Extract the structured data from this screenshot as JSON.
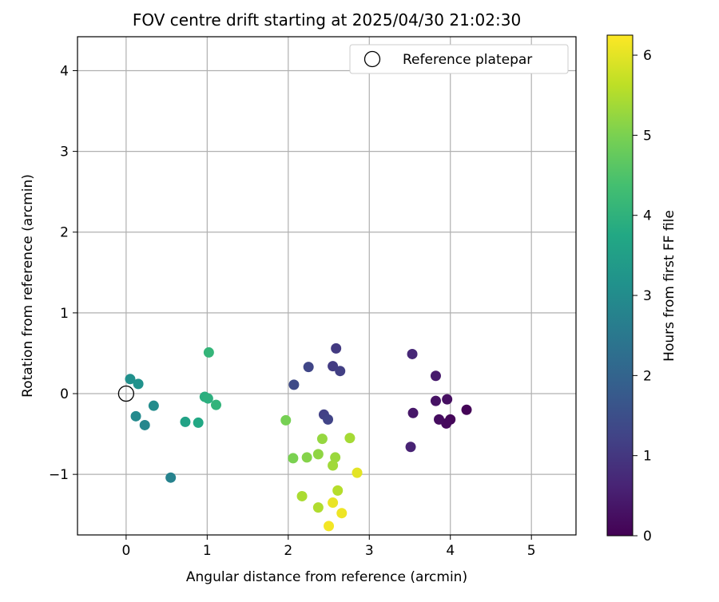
{
  "chart_data": {
    "type": "scatter",
    "title": "FOV centre drift starting at 2025/04/30 21:02:30",
    "xlabel": "Angular distance from reference (arcmin)",
    "ylabel": "Rotation from reference (arcmin)",
    "xlim": [
      -0.6,
      5.55
    ],
    "ylim": [
      -1.75,
      4.42
    ],
    "xticks": [
      0,
      1,
      2,
      3,
      4,
      5
    ],
    "yticks": [
      -1,
      0,
      1,
      2,
      3,
      4
    ],
    "grid": true,
    "legend": {
      "position": "top-right",
      "entries": [
        "Reference platepar"
      ]
    },
    "reference_point": {
      "x": 0.0,
      "y": 0.0,
      "name": "Reference platepar"
    },
    "colorbar": {
      "label": "Hours from first FF file",
      "range": [
        0,
        6.25
      ],
      "ticks": [
        0,
        1,
        2,
        3,
        4,
        5,
        6
      ],
      "colormap": "viridis"
    },
    "points": [
      {
        "x": 4.2,
        "y": -0.2,
        "c": 0.05
      },
      {
        "x": 4.0,
        "y": -0.32,
        "c": 0.1
      },
      {
        "x": 3.95,
        "y": -0.37,
        "c": 0.15
      },
      {
        "x": 3.86,
        "y": -0.32,
        "c": 0.2
      },
      {
        "x": 3.96,
        "y": -0.07,
        "c": 0.25
      },
      {
        "x": 3.82,
        "y": -0.09,
        "c": 0.3
      },
      {
        "x": 3.54,
        "y": -0.24,
        "c": 0.4
      },
      {
        "x": 3.82,
        "y": 0.22,
        "c": 0.45
      },
      {
        "x": 3.51,
        "y": -0.66,
        "c": 0.6
      },
      {
        "x": 3.53,
        "y": 0.49,
        "c": 0.7
      },
      {
        "x": 2.59,
        "y": 0.56,
        "c": 1.05
      },
      {
        "x": 2.55,
        "y": 0.34,
        "c": 1.1
      },
      {
        "x": 2.64,
        "y": 0.28,
        "c": 1.15
      },
      {
        "x": 2.44,
        "y": -0.26,
        "c": 1.2
      },
      {
        "x": 2.49,
        "y": -0.32,
        "c": 1.25
      },
      {
        "x": 2.25,
        "y": 0.33,
        "c": 1.3
      },
      {
        "x": 2.07,
        "y": 0.11,
        "c": 1.4
      },
      {
        "x": 0.55,
        "y": -1.04,
        "c": 2.75
      },
      {
        "x": 0.23,
        "y": -0.39,
        "c": 2.85
      },
      {
        "x": 0.12,
        "y": -0.28,
        "c": 2.95
      },
      {
        "x": 0.34,
        "y": -0.15,
        "c": 3.0
      },
      {
        "x": 0.05,
        "y": 0.18,
        "c": 3.1
      },
      {
        "x": 0.15,
        "y": 0.12,
        "c": 3.15
      },
      {
        "x": 0.73,
        "y": -0.35,
        "c": 3.6
      },
      {
        "x": 0.89,
        "y": -0.36,
        "c": 3.75
      },
      {
        "x": 0.97,
        "y": -0.04,
        "c": 3.9
      },
      {
        "x": 1.01,
        "y": -0.06,
        "c": 3.95
      },
      {
        "x": 1.11,
        "y": -0.14,
        "c": 4.05
      },
      {
        "x": 1.02,
        "y": 0.51,
        "c": 4.1
      },
      {
        "x": 1.97,
        "y": -0.33,
        "c": 4.95
      },
      {
        "x": 2.06,
        "y": -0.8,
        "c": 5.0
      },
      {
        "x": 2.23,
        "y": -0.79,
        "c": 5.1
      },
      {
        "x": 2.37,
        "y": -0.75,
        "c": 5.2
      },
      {
        "x": 2.42,
        "y": -0.56,
        "c": 5.25
      },
      {
        "x": 2.58,
        "y": -0.79,
        "c": 5.3
      },
      {
        "x": 2.55,
        "y": -0.89,
        "c": 5.35
      },
      {
        "x": 2.76,
        "y": -0.55,
        "c": 5.4
      },
      {
        "x": 2.17,
        "y": -1.27,
        "c": 5.45
      },
      {
        "x": 2.37,
        "y": -1.41,
        "c": 5.5
      },
      {
        "x": 2.61,
        "y": -1.2,
        "c": 5.55
      },
      {
        "x": 2.85,
        "y": -0.98,
        "c": 6.0
      },
      {
        "x": 2.55,
        "y": -1.35,
        "c": 6.05
      },
      {
        "x": 2.66,
        "y": -1.48,
        "c": 6.1
      },
      {
        "x": 2.5,
        "y": -1.64,
        "c": 6.15
      }
    ]
  }
}
